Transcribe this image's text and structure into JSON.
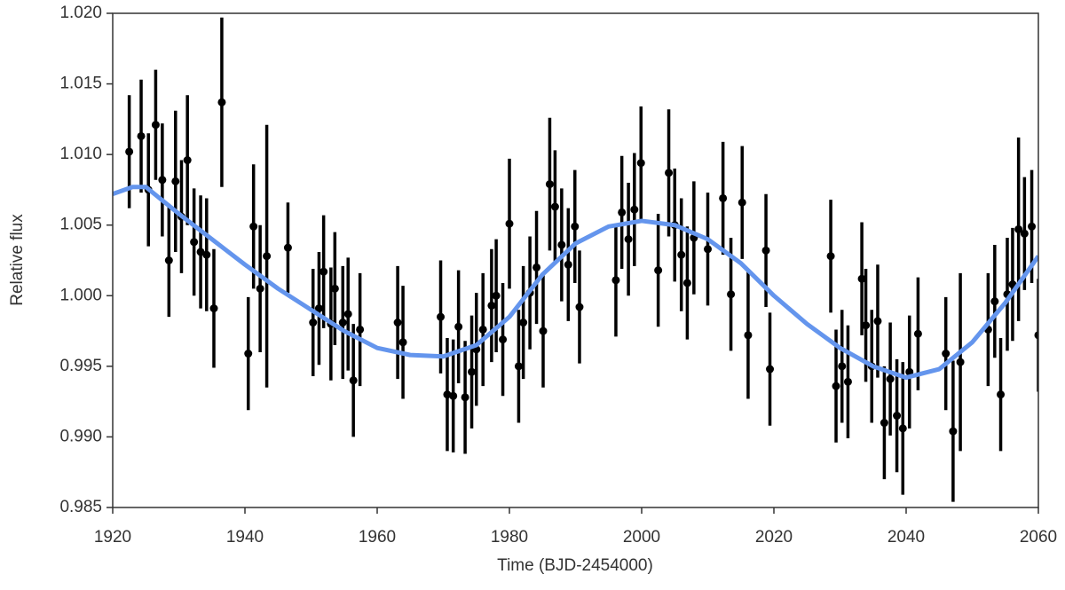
{
  "chart_data": {
    "type": "scatter",
    "xlabel": "Time (BJD-2454000)",
    "ylabel": "Relative flux",
    "xlim": [
      1920,
      2060
    ],
    "xticks": [
      1920,
      1940,
      1960,
      1980,
      2000,
      2020,
      2040,
      2060
    ],
    "ylim": [
      0.985,
      1.02
    ],
    "yticks": [
      {
        "value": 0.985,
        "label": "0.985"
      },
      {
        "value": 0.99,
        "label": "0.990"
      },
      {
        "value": 0.995,
        "label": "0.995"
      },
      {
        "value": 1.0,
        "label": "1.000"
      },
      {
        "value": 1.005,
        "label": "1.005"
      },
      {
        "value": 1.01,
        "label": "1.010"
      },
      {
        "value": 1.015,
        "label": "1.015"
      },
      {
        "value": 1.02,
        "label": "1.020"
      }
    ],
    "series": [
      {
        "type": "scatter",
        "color": "#000000",
        "x": [
          1922.5,
          1924.3,
          1925.4,
          1926.5,
          1927.5,
          1928.5,
          1929.5,
          1930.4,
          1931.3,
          1932.3,
          1933.3,
          1934.2,
          1935.3,
          1936.5,
          1940.5,
          1941.3,
          1942.3,
          1943.3,
          1946.5,
          1950.3,
          1951.2,
          1951.9,
          1953.0,
          1953.6,
          1954.8,
          1955.6,
          1956.4,
          1957.4,
          1963.1,
          1963.9,
          1969.6,
          1970.6,
          1971.5,
          1972.3,
          1973.3,
          1974.3,
          1975.0,
          1976.0,
          1977.3,
          1978.0,
          1979.0,
          1980.0,
          1981.4,
          1982.1,
          1983.1,
          1984.1,
          1985.1,
          1986.1,
          1986.9,
          1987.9,
          1988.9,
          1989.9,
          1990.6,
          1996.1,
          1997.0,
          1998.0,
          1998.9,
          1999.9,
          2002.5,
          2004.1,
          2005.0,
          2006.0,
          2006.9,
          2007.9,
          2010.0,
          2012.3,
          2013.5,
          2015.2,
          2016.1,
          2018.8,
          2019.4,
          2028.6,
          2029.4,
          2030.3,
          2031.2,
          2033.3,
          2033.9,
          2034.8,
          2035.7,
          2036.7,
          2037.6,
          2038.6,
          2039.5,
          2040.5,
          2041.8,
          2046.0,
          2047.1,
          2048.2,
          2052.4,
          2053.4,
          2054.3,
          2055.3,
          2056.1,
          2057.0,
          2057.9,
          2059.0,
          2060.0
        ],
        "values": [
          1.0102,
          1.0113,
          1.0075,
          1.0121,
          1.0082,
          1.0025,
          1.0081,
          1.0056,
          1.0096,
          1.0038,
          1.0031,
          1.0029,
          0.9991,
          1.0137,
          0.9959,
          1.0049,
          1.0005,
          1.0028,
          1.0034,
          0.9981,
          0.9991,
          1.0017,
          0.998,
          1.0005,
          0.9981,
          0.9987,
          0.994,
          0.9976,
          0.9981,
          0.9967,
          0.9985,
          0.993,
          0.9929,
          0.9978,
          0.9928,
          0.9946,
          0.9962,
          0.9976,
          0.9993,
          1.0,
          0.9969,
          1.0051,
          0.995,
          0.9981,
          1.0002,
          1.002,
          0.9975,
          1.0079,
          1.0063,
          1.0036,
          1.0022,
          1.0049,
          0.9992,
          1.0011,
          1.0059,
          1.004,
          1.0061,
          1.0094,
          1.0018,
          1.0087,
          1.005,
          1.0029,
          1.0009,
          1.0041,
          1.0033,
          1.0069,
          1.0001,
          1.0066,
          0.9972,
          1.0032,
          0.9948,
          1.0028,
          0.9936,
          0.995,
          0.9939,
          1.0012,
          0.9979,
          0.995,
          0.9982,
          0.991,
          0.9941,
          0.9915,
          0.9906,
          0.9946,
          0.9973,
          0.9959,
          0.9904,
          0.9953,
          0.9976,
          0.9996,
          0.993,
          1.0001,
          1.0008,
          1.0047,
          1.0044,
          1.0049,
          0.9972
        ],
        "errors": [
          0.004,
          0.004,
          0.004,
          0.0039,
          0.004,
          0.004,
          0.005,
          0.004,
          0.0046,
          0.0038,
          0.004,
          0.004,
          0.0042,
          0.006,
          0.004,
          0.0044,
          0.0045,
          0.0093,
          0.0032,
          0.0038,
          0.004,
          0.004,
          0.004,
          0.004,
          0.004,
          0.004,
          0.004,
          0.004,
          0.004,
          0.004,
          0.004,
          0.004,
          0.004,
          0.004,
          0.004,
          0.004,
          0.004,
          0.004,
          0.004,
          0.004,
          0.004,
          0.0046,
          0.004,
          0.004,
          0.004,
          0.004,
          0.004,
          0.0047,
          0.004,
          0.004,
          0.004,
          0.004,
          0.004,
          0.004,
          0.004,
          0.004,
          0.004,
          0.004,
          0.004,
          0.0045,
          0.004,
          0.004,
          0.004,
          0.004,
          0.004,
          0.004,
          0.004,
          0.004,
          0.0045,
          0.004,
          0.004,
          0.004,
          0.004,
          0.004,
          0.004,
          0.004,
          0.004,
          0.004,
          0.004,
          0.004,
          0.004,
          0.004,
          0.0047,
          0.004,
          0.004,
          0.004,
          0.005,
          0.0063,
          0.004,
          0.004,
          0.004,
          0.004,
          0.004,
          0.0065,
          0.004,
          0.004,
          0.004
        ]
      },
      {
        "type": "line",
        "color": "#6495ed",
        "x": [
          1920,
          1923,
          1925,
          1930,
          1935,
          1940,
          1945,
          1950,
          1955,
          1960,
          1965,
          1970,
          1975,
          1980,
          1985,
          1990,
          1995,
          2000,
          2005,
          2010,
          2015,
          2020,
          2025,
          2030,
          2035,
          2040,
          2045,
          2050,
          2055,
          2060
        ],
        "values": [
          1.0072,
          1.0077,
          1.0077,
          1.0058,
          1.004,
          1.0022,
          1.0005,
          0.999,
          0.9975,
          0.9963,
          0.9958,
          0.9957,
          0.9965,
          0.9985,
          1.0015,
          1.0037,
          1.0049,
          1.0053,
          1.005,
          1.004,
          1.0023,
          1.0,
          0.998,
          0.9963,
          0.995,
          0.9942,
          0.9948,
          0.9967,
          0.9995,
          1.0028
        ]
      }
    ]
  }
}
